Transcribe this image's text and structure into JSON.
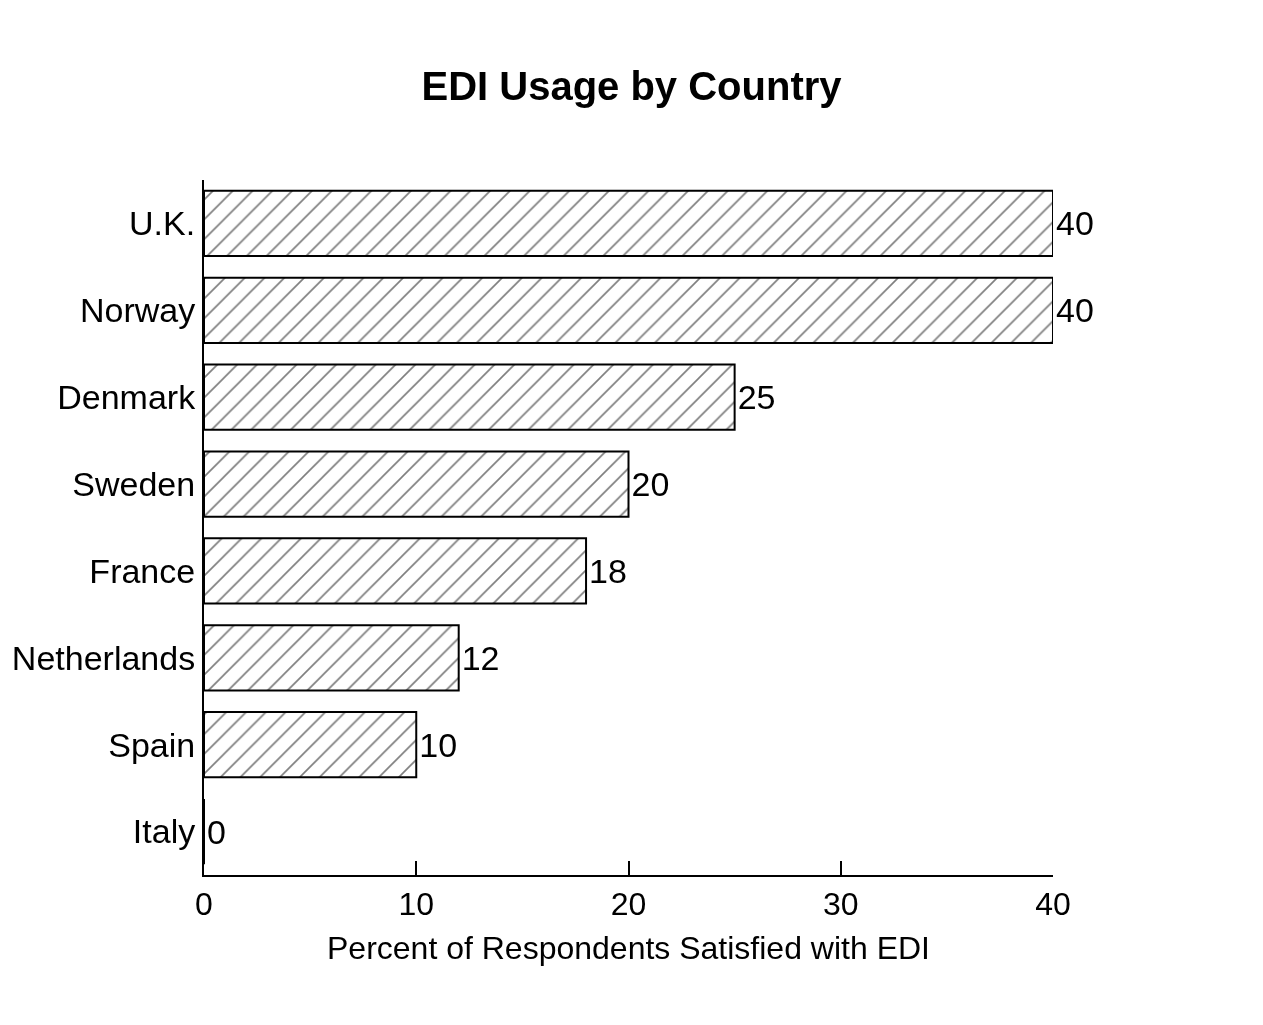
{
  "chart_data": {
    "type": "bar",
    "orientation": "horizontal",
    "title": "EDI Usage by Country",
    "xlabel": "Percent of Respondents Satisfied with EDI",
    "categories": [
      "U.K.",
      "Norway",
      "Denmark",
      "Sweden",
      "France",
      "Netherlands",
      "Spain",
      "Italy"
    ],
    "values": [
      40,
      40,
      25,
      20,
      18,
      12,
      10,
      0
    ],
    "color": "#000000",
    "xlim": [
      0,
      40
    ],
    "xticks": [
      0,
      10,
      20,
      30,
      40
    ],
    "grid": false,
    "data_labels": true
  }
}
